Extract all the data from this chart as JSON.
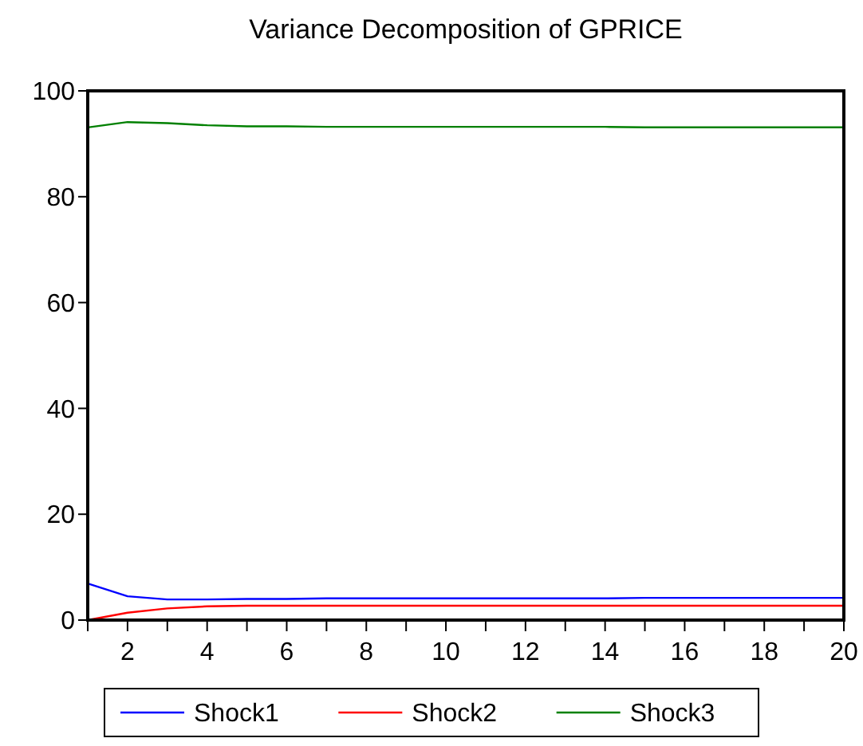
{
  "chart_data": {
    "type": "line",
    "title": "Variance Decomposition of GPRICE",
    "x": [
      1,
      2,
      3,
      4,
      5,
      6,
      7,
      8,
      9,
      10,
      11,
      12,
      13,
      14,
      15,
      16,
      17,
      18,
      19,
      20
    ],
    "series": [
      {
        "name": "Shock1",
        "color": "#0000ff",
        "values": [
          6.9,
          4.5,
          3.9,
          3.9,
          4.0,
          4.0,
          4.1,
          4.1,
          4.1,
          4.1,
          4.1,
          4.1,
          4.1,
          4.1,
          4.2,
          4.2,
          4.2,
          4.2,
          4.2,
          4.2
        ]
      },
      {
        "name": "Shock2",
        "color": "#ff0000",
        "values": [
          0,
          1.4,
          2.2,
          2.6,
          2.7,
          2.7,
          2.7,
          2.7,
          2.7,
          2.7,
          2.7,
          2.7,
          2.7,
          2.7,
          2.7,
          2.7,
          2.7,
          2.7,
          2.7,
          2.7
        ]
      },
      {
        "name": "Shock3",
        "color": "#008000",
        "values": [
          93.1,
          94.1,
          93.9,
          93.5,
          93.3,
          93.3,
          93.2,
          93.2,
          93.2,
          93.2,
          93.2,
          93.2,
          93.2,
          93.2,
          93.1,
          93.1,
          93.1,
          93.1,
          93.1,
          93.1
        ]
      }
    ],
    "xlim": [
      1,
      20
    ],
    "xticks": [
      {
        "value": 1,
        "label": null
      },
      2,
      {
        "value": 3,
        "label": null
      },
      4,
      {
        "value": 5,
        "label": null
      },
      6,
      {
        "value": 7,
        "label": null
      },
      8,
      {
        "value": 9,
        "label": null
      },
      10,
      {
        "value": 11,
        "label": null
      },
      12,
      {
        "value": 13,
        "label": null
      },
      14,
      {
        "value": 15,
        "label": null
      },
      16,
      {
        "value": 17,
        "label": null
      },
      18,
      {
        "value": 19,
        "label": null
      },
      20
    ],
    "ylim": [
      0,
      100
    ],
    "yticks": [
      0,
      20,
      40,
      60,
      80,
      100
    ],
    "grid": false,
    "legend": "bottom",
    "line_style": "solid",
    "marker": "none"
  }
}
